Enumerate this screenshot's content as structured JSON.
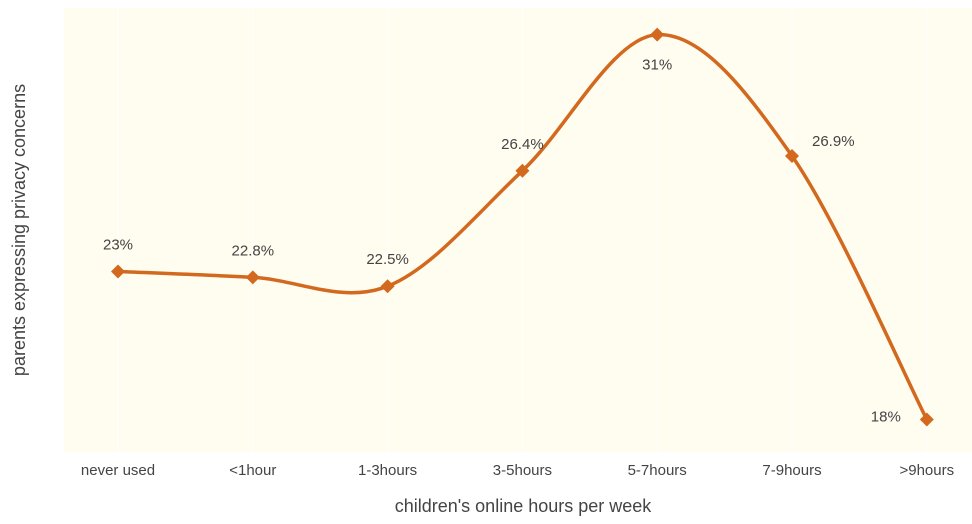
{
  "chart_data": {
    "type": "line",
    "x_label": "children's online hours per week",
    "y_label": "parents expressing privacy concerns",
    "categories": [
      "never used",
      "<1hour",
      "1-3hours",
      "3-5hours",
      "5-7hours",
      "7-9hours",
      ">9hours"
    ],
    "series": [
      {
        "name": "parents expressing privacy concerns",
        "color": "#d2691e",
        "values": [
          23,
          22.8,
          22.5,
          26.4,
          31,
          26.9,
          18
        ],
        "value_labels": [
          "23%",
          "22.8%",
          "22.5%",
          "26.4%",
          "31%",
          "26.9%",
          "18%"
        ]
      }
    ],
    "ylim": [
      16.9,
      31.9
    ],
    "grid": true
  }
}
